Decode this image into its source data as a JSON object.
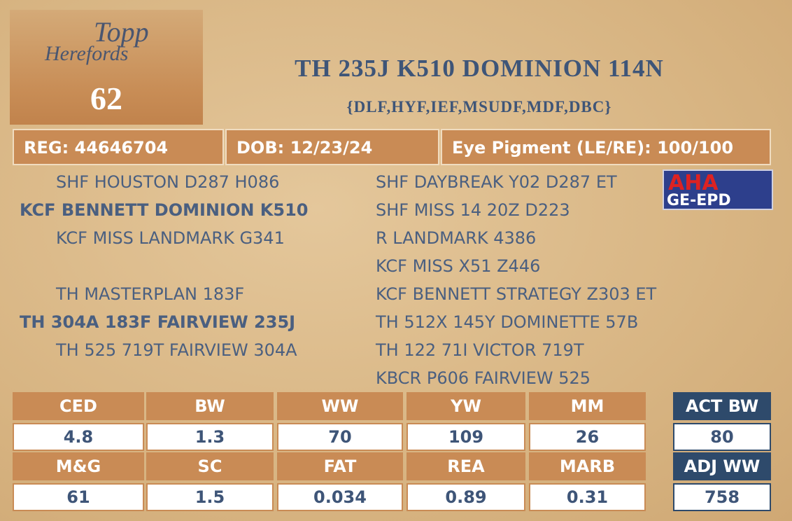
{
  "header": {
    "logo": {
      "line1": "Topp",
      "line2": "Herefords"
    },
    "lot": "62",
    "title": "TH 235J K510 DOMINION 114N",
    "subtitle": "{DLF,HYF,IEF,MSUDF,MDF,DBC}"
  },
  "info": [
    "REG: 44646704",
    "DOB: 12/23/24",
    "Eye Pigment (LE/RE): 100/100"
  ],
  "badge": {
    "top": "AHA",
    "bottom": "GE-EPD"
  },
  "pedigree": {
    "left": [
      {
        "row": 0,
        "text": "SHF HOUSTON D287 H086"
      },
      {
        "row": 1,
        "text": "KCF BENNETT DOMINION K510",
        "bold": true
      },
      {
        "row": 2,
        "text": "KCF MISS LANDMARK G341"
      },
      {
        "row": 4,
        "text": "TH MASTERPLAN 183F"
      },
      {
        "row": 5,
        "text": "TH 304A 183F FAIRVIEW 235J",
        "bold": true
      },
      {
        "row": 6,
        "text": "TH 525 719T FAIRVIEW 304A"
      }
    ],
    "right": [
      "SHF DAYBREAK Y02 D287 ET",
      "SHF MISS 14 20Z D223",
      "R LANDMARK 4386",
      "KCF MISS X51 Z446",
      "KCF BENNETT STRATEGY Z303 ET",
      "TH 512X 145Y DOMINETTE 57B",
      "TH 122 71I VICTOR 719T",
      "KBCR P606 FAIRVIEW 525"
    ]
  },
  "epd": {
    "rows": [
      {
        "headers": [
          "CED",
          "BW",
          "WW",
          "YW",
          "MM"
        ],
        "values": [
          "4.8",
          "1.3",
          "70",
          "109",
          "26"
        ]
      },
      {
        "headers": [
          "M&G",
          "SC",
          "FAT",
          "REA",
          "MARB"
        ],
        "values": [
          "61",
          "1.5",
          "0.034",
          "0.89",
          "0.31"
        ]
      }
    ]
  },
  "weights": [
    {
      "header": "ACT BW",
      "value": "80"
    },
    {
      "header": "ADJ WW",
      "value": "758"
    }
  ]
}
